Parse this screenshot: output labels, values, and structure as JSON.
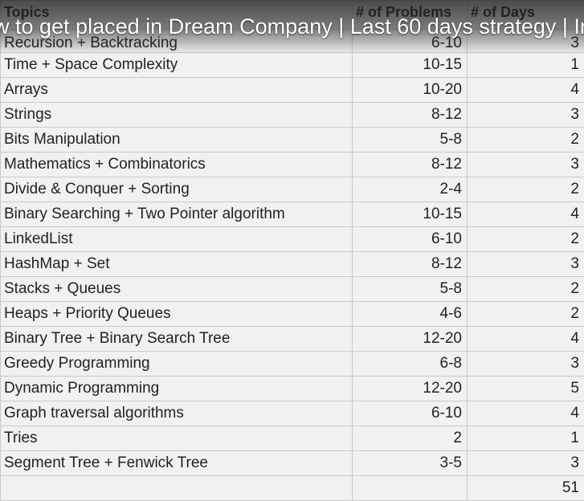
{
  "video": {
    "title": "w to get placed in Dream Company | Last 60 days strategy | Im"
  },
  "table": {
    "headers": [
      "Topics",
      "# of Problems",
      "# of Days"
    ],
    "rows": [
      {
        "topic": "Recursion + Backtracking",
        "problems": "6-10",
        "days": "3"
      },
      {
        "topic": "Time + Space Complexity",
        "problems": "10-15",
        "days": "1"
      },
      {
        "topic": "Arrays",
        "problems": "10-20",
        "days": "4"
      },
      {
        "topic": "Strings",
        "problems": "8-12",
        "days": "3"
      },
      {
        "topic": "Bits Manipulation",
        "problems": "5-8",
        "days": "2"
      },
      {
        "topic": "Mathematics + Combinatorics",
        "problems": "8-12",
        "days": "3"
      },
      {
        "topic": "Divide & Conquer + Sorting",
        "problems": "2-4",
        "days": "2"
      },
      {
        "topic": "Binary Searching + Two Pointer algorithm",
        "problems": "10-15",
        "days": "4"
      },
      {
        "topic": "LinkedList",
        "problems": "6-10",
        "days": "2"
      },
      {
        "topic": "HashMap + Set",
        "problems": "8-12",
        "days": "3"
      },
      {
        "topic": "Stacks + Queues",
        "problems": "5-8",
        "days": "2"
      },
      {
        "topic": "Heaps + Priority Queues",
        "problems": "4-6",
        "days": "2"
      },
      {
        "topic": "Binary Tree + Binary Search Tree",
        "problems": "12-20",
        "days": "4"
      },
      {
        "topic": "Greedy Programming",
        "problems": "6-8",
        "days": "3"
      },
      {
        "topic": "Dynamic Programming",
        "problems": "12-20",
        "days": "5"
      },
      {
        "topic": "Graph traversal algorithms",
        "problems": "6-10",
        "days": "4"
      },
      {
        "topic": "Tries",
        "problems": "2",
        "days": "1"
      },
      {
        "topic": "Segment Tree + Fenwick Tree",
        "problems": "3-5",
        "days": "3"
      }
    ],
    "total": {
      "topic": "",
      "problems": "",
      "days": "51"
    }
  }
}
